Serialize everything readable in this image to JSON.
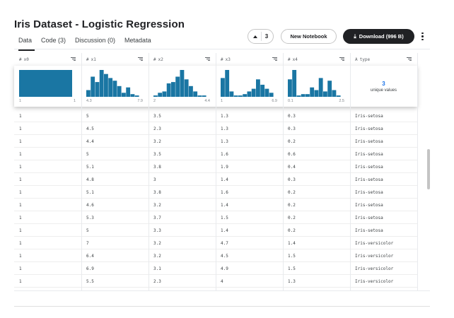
{
  "title": "Iris Dataset - Logistic Regression",
  "tabs": [
    {
      "label": "Data"
    },
    {
      "label": "Code (3)"
    },
    {
      "label": "Discussion (0)"
    },
    {
      "label": "Metadata"
    }
  ],
  "actions": {
    "vote_count": "3",
    "new_notebook": "New Notebook",
    "download": "Download (996 B)"
  },
  "columns": [
    {
      "name": "x0",
      "type_icon": "#",
      "min": "1",
      "max": "1",
      "hist": [
        1.0
      ]
    },
    {
      "name": "x1",
      "type_icon": "#",
      "min": "4.3",
      "max": "7.9",
      "hist": [
        0.25,
        0.75,
        0.55,
        1.0,
        0.85,
        0.7,
        0.6,
        0.4,
        0.15,
        0.35,
        0.1,
        0.05
      ]
    },
    {
      "name": "x2",
      "type_icon": "#",
      "min": "2",
      "max": "4.4",
      "hist": [
        0.05,
        0.15,
        0.2,
        0.5,
        0.55,
        0.75,
        1.0,
        0.65,
        0.4,
        0.2,
        0.05,
        0.05
      ]
    },
    {
      "name": "x3",
      "type_icon": "#",
      "min": "1",
      "max": "6.9",
      "hist": [
        0.7,
        1.0,
        0.2,
        0.05,
        0.05,
        0.1,
        0.2,
        0.3,
        0.65,
        0.45,
        0.3,
        0.15
      ]
    },
    {
      "name": "x4",
      "type_icon": "#",
      "min": "0.1",
      "max": "2.5",
      "hist": [
        0.65,
        1.0,
        0.05,
        0.1,
        0.1,
        0.35,
        0.25,
        0.7,
        0.2,
        0.6,
        0.25,
        0.05
      ]
    },
    {
      "name": "type",
      "type_icon": "A",
      "unique_count": "3",
      "unique_label": "unique values"
    }
  ],
  "rows": [
    [
      "1",
      "5",
      "3.5",
      "1.3",
      "0.3",
      "Iris-setosa"
    ],
    [
      "1",
      "4.5",
      "2.3",
      "1.3",
      "0.3",
      "Iris-setosa"
    ],
    [
      "1",
      "4.4",
      "3.2",
      "1.3",
      "0.2",
      "Iris-setosa"
    ],
    [
      "1",
      "5",
      "3.5",
      "1.6",
      "0.6",
      "Iris-setosa"
    ],
    [
      "1",
      "5.1",
      "3.8",
      "1.9",
      "0.4",
      "Iris-setosa"
    ],
    [
      "1",
      "4.8",
      "3",
      "1.4",
      "0.3",
      "Iris-setosa"
    ],
    [
      "1",
      "5.1",
      "3.8",
      "1.6",
      "0.2",
      "Iris-setosa"
    ],
    [
      "1",
      "4.6",
      "3.2",
      "1.4",
      "0.2",
      "Iris-setosa"
    ],
    [
      "1",
      "5.3",
      "3.7",
      "1.5",
      "0.2",
      "Iris-setosa"
    ],
    [
      "1",
      "5",
      "3.3",
      "1.4",
      "0.2",
      "Iris-setosa"
    ],
    [
      "1",
      "7",
      "3.2",
      "4.7",
      "1.4",
      "Iris-versicolor"
    ],
    [
      "1",
      "6.4",
      "3.2",
      "4.5",
      "1.5",
      "Iris-versicolor"
    ],
    [
      "1",
      "6.9",
      "3.1",
      "4.9",
      "1.5",
      "Iris-versicolor"
    ],
    [
      "1",
      "5.5",
      "2.3",
      "4",
      "1.3",
      "Iris-versicolor"
    ]
  ],
  "colors": {
    "bar": "#1a76a3",
    "accent": "#1a73e8",
    "dark_button": "#202124"
  }
}
